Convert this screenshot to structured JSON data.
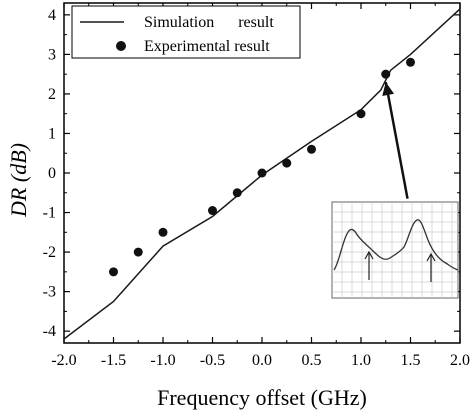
{
  "chart_data": {
    "type": "line",
    "xlabel": "Frequency offset (GHz)",
    "ylabel": "DR (dB)",
    "xlim": [
      -2.0,
      2.0
    ],
    "ylim": [
      -4.3,
      4.3
    ],
    "xticks": [
      -2.0,
      -1.5,
      -1.0,
      -0.5,
      0.0,
      0.5,
      1.0,
      1.5,
      2.0
    ],
    "xtick_labels": [
      "-2.0",
      "-1.5",
      "-1.0",
      "-0.5",
      "0.0",
      "0.5",
      "1.0",
      "1.5",
      "2.0"
    ],
    "yticks": [
      -4,
      -3,
      -2,
      -1,
      0,
      1,
      2,
      3,
      4
    ],
    "ytick_labels": [
      "-4",
      "-3",
      "-2",
      "-1",
      "0",
      "1",
      "2",
      "3",
      "4"
    ],
    "grid": false,
    "legend_position": "top-left",
    "series": [
      {
        "name": "Simulation      result",
        "style": "line",
        "x": [
          -2.0,
          -1.5,
          -1.0,
          -0.5,
          0.0,
          0.5,
          1.0,
          1.2,
          1.3,
          1.5,
          2.0
        ],
        "y": [
          -4.2,
          -3.25,
          -1.85,
          -1.1,
          -0.05,
          0.8,
          1.6,
          2.1,
          2.6,
          3.0,
          4.15
        ]
      },
      {
        "name": "Experimental result",
        "style": "marker",
        "x": [
          -1.5,
          -1.25,
          -1.0,
          -0.5,
          -0.25,
          0.0,
          0.25,
          0.5,
          1.0,
          1.25,
          1.5
        ],
        "y": [
          -2.5,
          -2.0,
          -1.5,
          -0.95,
          -0.5,
          0.0,
          0.25,
          0.6,
          1.5,
          2.5,
          2.8
        ]
      }
    ],
    "annotations": [
      {
        "type": "arrow",
        "from": [
          1.47,
          -0.65
        ],
        "to": [
          1.25,
          2.3
        ],
        "note": "points from inset spectrum to data near 1.25 GHz"
      },
      {
        "type": "inset",
        "content": "spectrum trace on grid with two upward arrows",
        "corner": "bottom-right"
      }
    ],
    "colors": {
      "line": "#1a1a1a",
      "marker": "#111111",
      "inset_grid": "#cccccc",
      "axis": "#000000"
    }
  }
}
